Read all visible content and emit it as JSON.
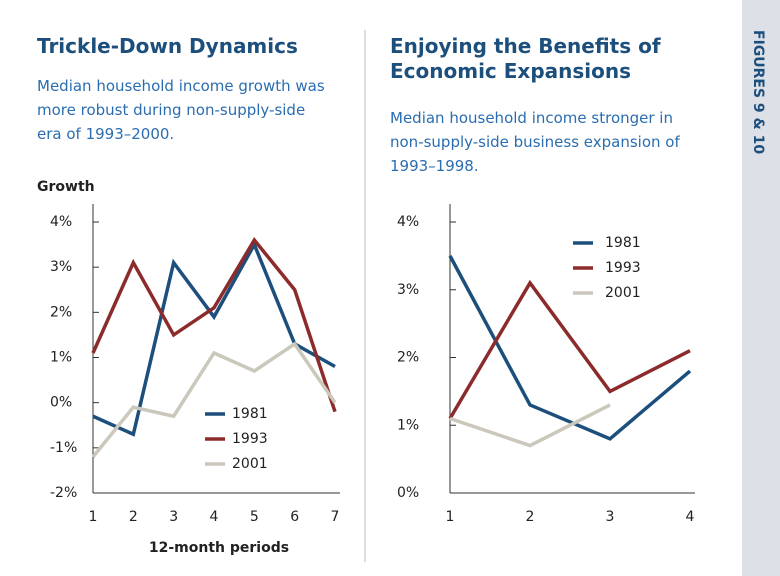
{
  "side_label": "FIGURES 9 & 10",
  "chart_data": [
    {
      "type": "line",
      "title": "Trickle-Down Dynamics",
      "subtitle": "Median household income growth was more robust during non-supply-side era of 1993–2000.",
      "y_label": "Growth",
      "x_label": "12-month periods",
      "x": [
        1,
        2,
        3,
        4,
        5,
        6,
        7
      ],
      "xlim": [
        1,
        7
      ],
      "xticks": [
        1,
        2,
        3,
        4,
        5,
        6,
        7
      ],
      "ylim": [
        -2,
        4
      ],
      "yticks": [
        {
          "value": -2,
          "label": "-2%"
        },
        {
          "value": -1,
          "label": "-1%"
        },
        {
          "value": 0,
          "label": "0%"
        },
        {
          "value": 1,
          "label": "1%"
        },
        {
          "value": 2,
          "label": "2%"
        },
        {
          "value": 3,
          "label": "3%"
        },
        {
          "value": 4,
          "label": "4%"
        }
      ],
      "legend": "lower right",
      "series": [
        {
          "name": "1981",
          "color": "#1d4f7c",
          "values": [
            -0.3,
            -0.7,
            3.1,
            1.9,
            3.5,
            1.3,
            0.8
          ]
        },
        {
          "name": "1993",
          "color": "#8c2b2b",
          "values": [
            1.1,
            3.1,
            1.5,
            2.1,
            3.6,
            2.5,
            -0.2
          ]
        },
        {
          "name": "2001",
          "color": "#cbc7bb",
          "values": [
            -1.2,
            -0.1,
            -0.3,
            1.1,
            0.7,
            1.3,
            0.0
          ]
        }
      ]
    },
    {
      "type": "line",
      "title": "Enjoying the Benefits of Economic Expansions",
      "subtitle": "Median household income stronger in non-supply-side business expansion of 1993–1998.",
      "x": [
        1,
        2,
        3,
        4
      ],
      "xlim": [
        1,
        4
      ],
      "xticks": [
        1,
        2,
        3,
        4
      ],
      "ylim": [
        0,
        4
      ],
      "yticks": [
        {
          "value": 0,
          "label": "0%"
        },
        {
          "value": 1,
          "label": "1%"
        },
        {
          "value": 2,
          "label": "2%"
        },
        {
          "value": 3,
          "label": "3%"
        },
        {
          "value": 4,
          "label": "4%"
        }
      ],
      "legend": "upper right",
      "series": [
        {
          "name": "1981",
          "color": "#1d4f7c",
          "values": [
            3.5,
            1.3,
            0.8,
            1.8
          ]
        },
        {
          "name": "1993",
          "color": "#8c2b2b",
          "values": [
            1.1,
            3.1,
            1.5,
            2.1
          ]
        },
        {
          "name": "2001",
          "color": "#cbc7bb",
          "values": [
            1.1,
            0.7,
            1.3,
            null
          ]
        }
      ]
    }
  ]
}
